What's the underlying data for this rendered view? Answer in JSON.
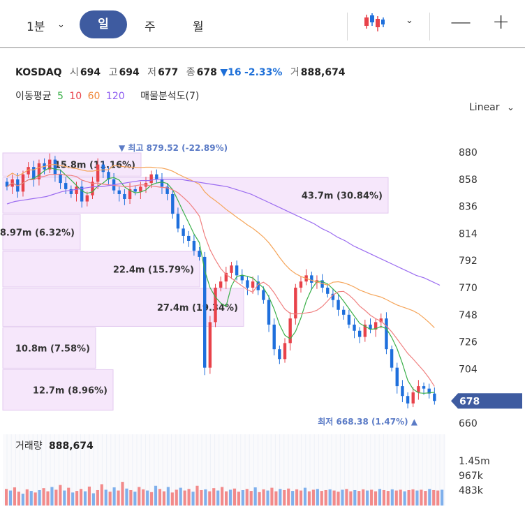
{
  "toolbar": {
    "interval": "1분",
    "tabs": [
      "일",
      "주",
      "월"
    ],
    "zoom_out": "—",
    "zoom_in": "+",
    "chart_type_icon": "candlestick-icon"
  },
  "quote": {
    "symbol": "KOSDAQ",
    "open_label": "시",
    "open": "694",
    "high_label": "고",
    "high": "694",
    "low_label": "저",
    "low": "677",
    "close_label": "종",
    "close": "678",
    "change_arrow": "▼",
    "change": "16",
    "change_pct": "-2.33%",
    "volume_label": "거",
    "volume": "888,674"
  },
  "indicators": {
    "ma_label": "이동평균",
    "ma_periods": [
      "5",
      "10",
      "60",
      "120"
    ],
    "volume_profile_label": "매물분석도(7)"
  },
  "scale_label": "Linear",
  "colors": {
    "up": "#e8424a",
    "down": "#1e6fdc",
    "ma5": "#3bb04a",
    "ma10": "#f08080",
    "ma60": "#f5a55a",
    "ma120": "#9b6cf0",
    "profile": "#f6e7fb",
    "accent": "#3e5ba0"
  },
  "chart_data": {
    "type": "candlestick",
    "y_axis": {
      "ticks": [
        880,
        858,
        836,
        814,
        792,
        770,
        748,
        726,
        704,
        660
      ],
      "range": [
        660,
        880
      ]
    },
    "last_price": "678",
    "high_marker": "▼ 최고 879.52 (-22.89%)",
    "low_marker": "최저 668.38 (1.47%) ▲",
    "volume_profile": [
      {
        "label": "15.8m (11.16%)",
        "price_range": [
          860,
          880
        ]
      },
      {
        "label": "43.7m (30.84%)",
        "price_range": [
          830,
          860
        ]
      },
      {
        "label": "8.97m (6.32%)",
        "price_range": [
          800,
          830
        ]
      },
      {
        "label": "22.4m (15.79%)",
        "price_range": [
          770,
          800
        ]
      },
      {
        "label": "27.4m (19.34%)",
        "price_range": [
          738,
          770
        ]
      },
      {
        "label": "10.8m (7.58%)",
        "price_range": [
          704,
          738
        ]
      },
      {
        "label": "12.7m (8.96%)",
        "price_range": [
          670,
          704
        ]
      }
    ],
    "close_series": [
      852,
      858,
      848,
      862,
      868,
      858,
      871,
      866,
      874,
      862,
      855,
      850,
      846,
      852,
      840,
      845,
      856,
      870,
      864,
      858,
      849,
      846,
      842,
      850,
      848,
      852,
      855,
      862,
      858,
      852,
      846,
      830,
      818,
      812,
      808,
      800,
      795,
      705,
      742,
      770,
      775,
      782,
      788,
      780,
      776,
      770,
      775,
      768,
      760,
      740,
      720,
      712,
      725,
      745,
      770,
      775,
      780,
      774,
      776,
      770,
      765,
      760,
      752,
      748,
      740,
      735,
      730,
      740,
      736,
      742,
      745,
      720,
      705,
      690,
      682,
      676,
      685,
      690,
      688,
      684,
      678
    ],
    "ma120": [
      838,
      840,
      841,
      842,
      843,
      844,
      846,
      848,
      849,
      850,
      851,
      852,
      852,
      853,
      854,
      855,
      856,
      857,
      857,
      858,
      858,
      858,
      858,
      857,
      856,
      855,
      854,
      853,
      852,
      850,
      848,
      846,
      843,
      840,
      837,
      834,
      831,
      828,
      825,
      822,
      818,
      815,
      811,
      808,
      804,
      801,
      798,
      795,
      792,
      789,
      786,
      783,
      780,
      778,
      775,
      772
    ],
    "volume_label": "거래량",
    "volume_value": "888,674",
    "volume_ticks": [
      "1.45m",
      "967k",
      "483k"
    ],
    "volume": [
      [
        420,
        "u"
      ],
      [
        380,
        "d"
      ],
      [
        460,
        "u"
      ],
      [
        350,
        "u"
      ],
      [
        300,
        "d"
      ],
      [
        410,
        "u"
      ],
      [
        370,
        "d"
      ],
      [
        330,
        "u"
      ],
      [
        390,
        "d"
      ],
      [
        440,
        "u"
      ],
      [
        360,
        "u"
      ],
      [
        470,
        "d"
      ],
      [
        400,
        "u"
      ],
      [
        520,
        "u"
      ],
      [
        380,
        "d"
      ],
      [
        450,
        "u"
      ],
      [
        330,
        "d"
      ],
      [
        370,
        "u"
      ],
      [
        420,
        "u"
      ],
      [
        360,
        "d"
      ],
      [
        480,
        "u"
      ],
      [
        310,
        "d"
      ],
      [
        390,
        "u"
      ],
      [
        540,
        "u"
      ],
      [
        400,
        "d"
      ],
      [
        350,
        "u"
      ],
      [
        460,
        "d"
      ],
      [
        380,
        "u"
      ],
      [
        600,
        "u"
      ],
      [
        430,
        "d"
      ],
      [
        390,
        "u"
      ],
      [
        350,
        "d"
      ],
      [
        470,
        "u"
      ],
      [
        410,
        "u"
      ],
      [
        380,
        "d"
      ],
      [
        340,
        "u"
      ],
      [
        500,
        "d"
      ],
      [
        420,
        "u"
      ],
      [
        360,
        "u"
      ],
      [
        470,
        "d"
      ],
      [
        330,
        "u"
      ],
      [
        400,
        "u"
      ],
      [
        450,
        "d"
      ],
      [
        380,
        "u"
      ],
      [
        420,
        "u"
      ],
      [
        350,
        "d"
      ],
      [
        500,
        "u"
      ],
      [
        390,
        "u"
      ],
      [
        410,
        "d"
      ],
      [
        360,
        "u"
      ],
      [
        440,
        "u"
      ],
      [
        380,
        "d"
      ],
      [
        470,
        "u"
      ],
      [
        360,
        "u"
      ],
      [
        400,
        "d"
      ],
      [
        430,
        "u"
      ],
      [
        350,
        "u"
      ],
      [
        390,
        "d"
      ],
      [
        420,
        "u"
      ],
      [
        370,
        "u"
      ],
      [
        460,
        "d"
      ],
      [
        340,
        "u"
      ],
      [
        410,
        "u"
      ],
      [
        380,
        "d"
      ],
      [
        450,
        "u"
      ],
      [
        360,
        "u"
      ],
      [
        420,
        "d"
      ],
      [
        390,
        "u"
      ],
      [
        430,
        "u"
      ],
      [
        370,
        "d"
      ],
      [
        410,
        "u"
      ],
      [
        380,
        "u"
      ],
      [
        450,
        "d"
      ],
      [
        360,
        "u"
      ],
      [
        400,
        "u"
      ],
      [
        420,
        "d"
      ],
      [
        370,
        "u"
      ],
      [
        390,
        "u"
      ],
      [
        410,
        "d"
      ],
      [
        380,
        "u"
      ],
      [
        350,
        "u"
      ],
      [
        400,
        "d"
      ],
      [
        420,
        "u"
      ],
      [
        360,
        "u"
      ],
      [
        390,
        "d"
      ],
      [
        370,
        "u"
      ],
      [
        410,
        "u"
      ],
      [
        380,
        "d"
      ],
      [
        400,
        "u"
      ],
      [
        360,
        "u"
      ],
      [
        420,
        "d"
      ],
      [
        390,
        "u"
      ],
      [
        370,
        "u"
      ],
      [
        410,
        "d"
      ],
      [
        380,
        "u"
      ],
      [
        400,
        "u"
      ],
      [
        360,
        "d"
      ],
      [
        390,
        "u"
      ],
      [
        410,
        "u"
      ],
      [
        380,
        "d"
      ],
      [
        400,
        "u"
      ],
      [
        370,
        "u"
      ],
      [
        420,
        "d"
      ],
      [
        390,
        "u"
      ],
      [
        380,
        "u"
      ],
      [
        400,
        "d"
      ]
    ]
  }
}
